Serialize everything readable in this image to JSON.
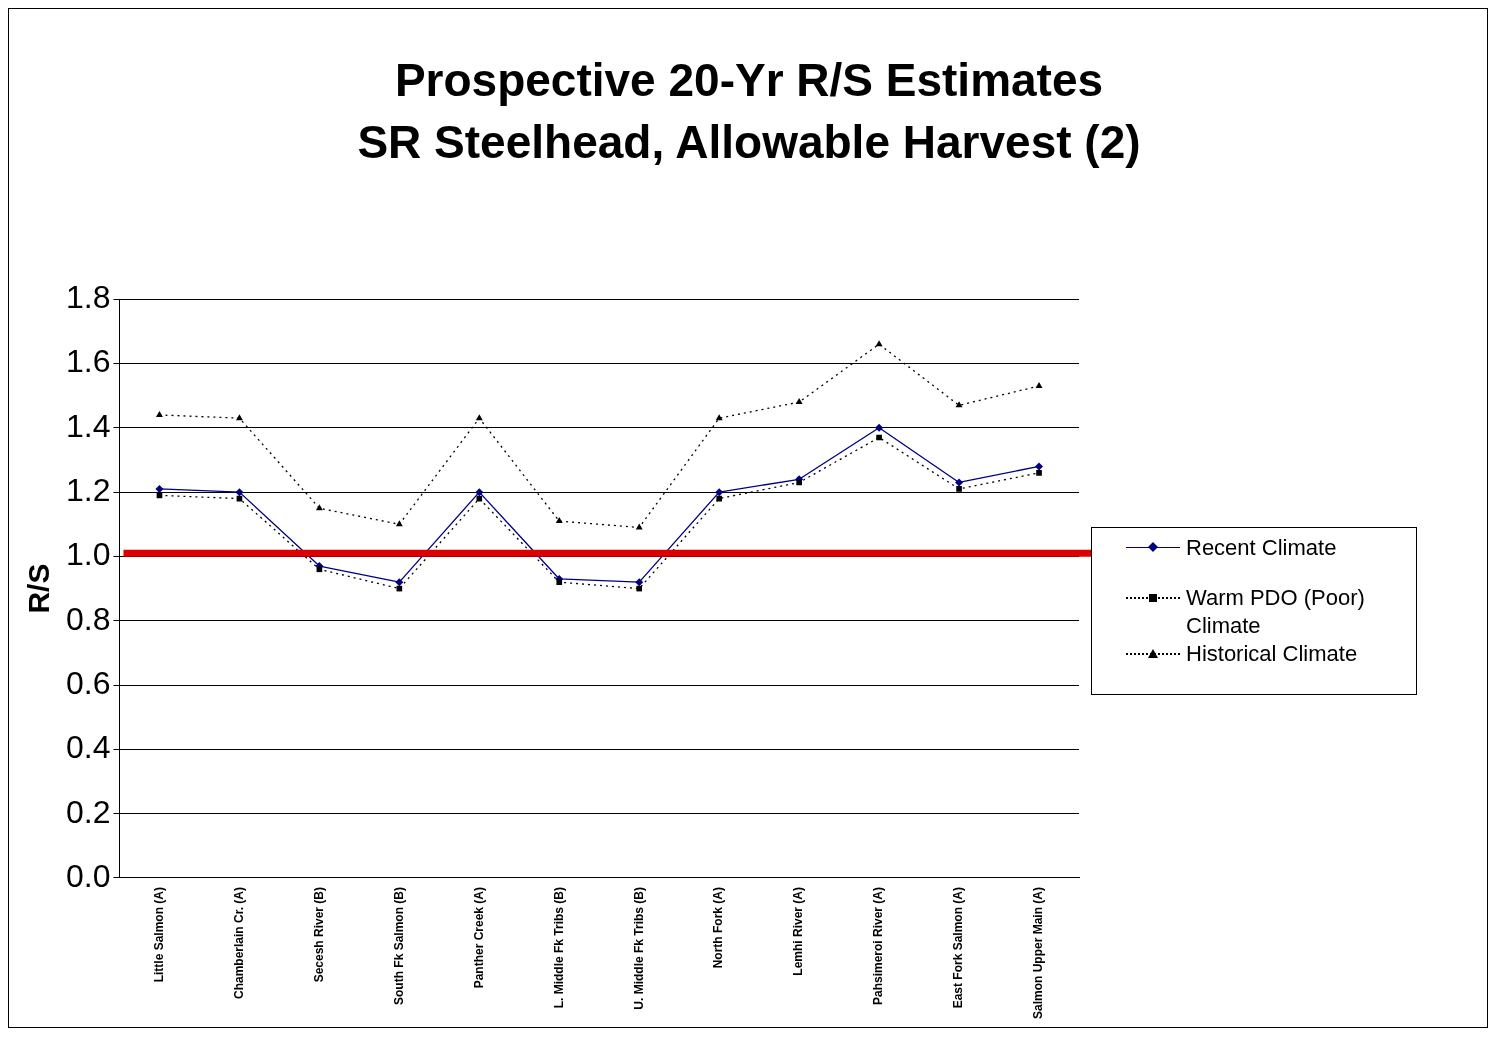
{
  "chart_data": {
    "type": "line",
    "title": "Prospective 20-Yr R/S Estimates",
    "subtitle": "SR Steelhead, Allowable Harvest (2)",
    "ylabel": "R/S",
    "categories": [
      "Little Salmon (A)",
      "Chamberlain Cr. (A)",
      "Secesh River (B)",
      "South Fk Salmon (B)",
      "Panther Creek (A)",
      "L. Middle Fk Tribs (B)",
      "U. Middle Fk Tribs (B)",
      "North Fork (A)",
      "Lemhi River (A)",
      "Pahsimeroi River (A)",
      "East Fork Salmon (A)",
      "Salmon Upper Main (A)"
    ],
    "series": [
      {
        "name": "Recent Climate",
        "color": "#000080",
        "marker": "diamond",
        "line_style": "solid",
        "values": [
          1.21,
          1.2,
          0.97,
          0.92,
          1.2,
          0.93,
          0.92,
          1.2,
          1.24,
          1.4,
          1.23,
          1.28
        ]
      },
      {
        "name": "Warm PDO (Poor) Climate",
        "color": "#000000",
        "marker": "square",
        "line_style": "dotted",
        "values": [
          1.19,
          1.18,
          0.96,
          0.9,
          1.18,
          0.92,
          0.9,
          1.18,
          1.23,
          1.37,
          1.21,
          1.26
        ]
      },
      {
        "name": "Historical Climate",
        "color": "#000000",
        "marker": "triangle",
        "line_style": "dotted",
        "values": [
          1.44,
          1.43,
          1.15,
          1.1,
          1.43,
          1.11,
          1.09,
          1.43,
          1.48,
          1.66,
          1.47,
          1.53
        ]
      }
    ],
    "ref_lines": [
      {
        "axis": "y",
        "value": 1.01,
        "color": "#dd0000"
      }
    ],
    "ylim": [
      0,
      1.8
    ],
    "yticks": [
      {
        "value": 0,
        "label": "0.0"
      },
      {
        "value": 0.2,
        "label": "0.2"
      },
      {
        "value": 0.4,
        "label": "0.4"
      },
      {
        "value": 0.6,
        "label": "0.6"
      },
      {
        "value": 0.8,
        "label": "0.8"
      },
      {
        "value": 1,
        "label": "1.0"
      },
      {
        "value": 1.2,
        "label": "1.2"
      },
      {
        "value": 1.4,
        "label": "1.4"
      },
      {
        "value": 1.6,
        "label": "1.6"
      },
      {
        "value": 1.8,
        "label": "1.8"
      }
    ],
    "grid": "y",
    "legend": "right"
  }
}
